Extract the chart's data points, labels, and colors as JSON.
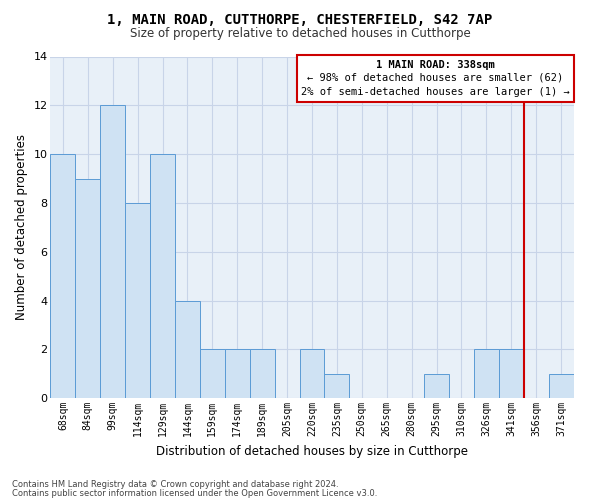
{
  "title": "1, MAIN ROAD, CUTTHORPE, CHESTERFIELD, S42 7AP",
  "subtitle": "Size of property relative to detached houses in Cutthorpe",
  "xlabel": "Distribution of detached houses by size in Cutthorpe",
  "ylabel": "Number of detached properties",
  "categories": [
    "68sqm",
    "84sqm",
    "99sqm",
    "114sqm",
    "129sqm",
    "144sqm",
    "159sqm",
    "174sqm",
    "189sqm",
    "205sqm",
    "220sqm",
    "235sqm",
    "250sqm",
    "265sqm",
    "280sqm",
    "295sqm",
    "310sqm",
    "326sqm",
    "341sqm",
    "356sqm",
    "371sqm"
  ],
  "values": [
    10,
    9,
    12,
    8,
    10,
    4,
    2,
    2,
    2,
    0,
    2,
    1,
    0,
    0,
    0,
    1,
    0,
    2,
    2,
    0,
    1
  ],
  "bar_color": "#cfe2f3",
  "bar_edge_color": "#5b9bd5",
  "grid_color": "#c8d4e8",
  "subject_label": "1 MAIN ROAD: 338sqm",
  "annotation_line1": "← 98% of detached houses are smaller (62)",
  "annotation_line2": "2% of semi-detached houses are larger (1) →",
  "annotation_box_color": "#cc0000",
  "ylim": [
    0,
    14
  ],
  "yticks": [
    0,
    2,
    4,
    6,
    8,
    10,
    12,
    14
  ],
  "footer_line1": "Contains HM Land Registry data © Crown copyright and database right 2024.",
  "footer_line2": "Contains public sector information licensed under the Open Government Licence v3.0.",
  "background_color": "#ffffff",
  "plot_bg_color": "#e8f0f8"
}
